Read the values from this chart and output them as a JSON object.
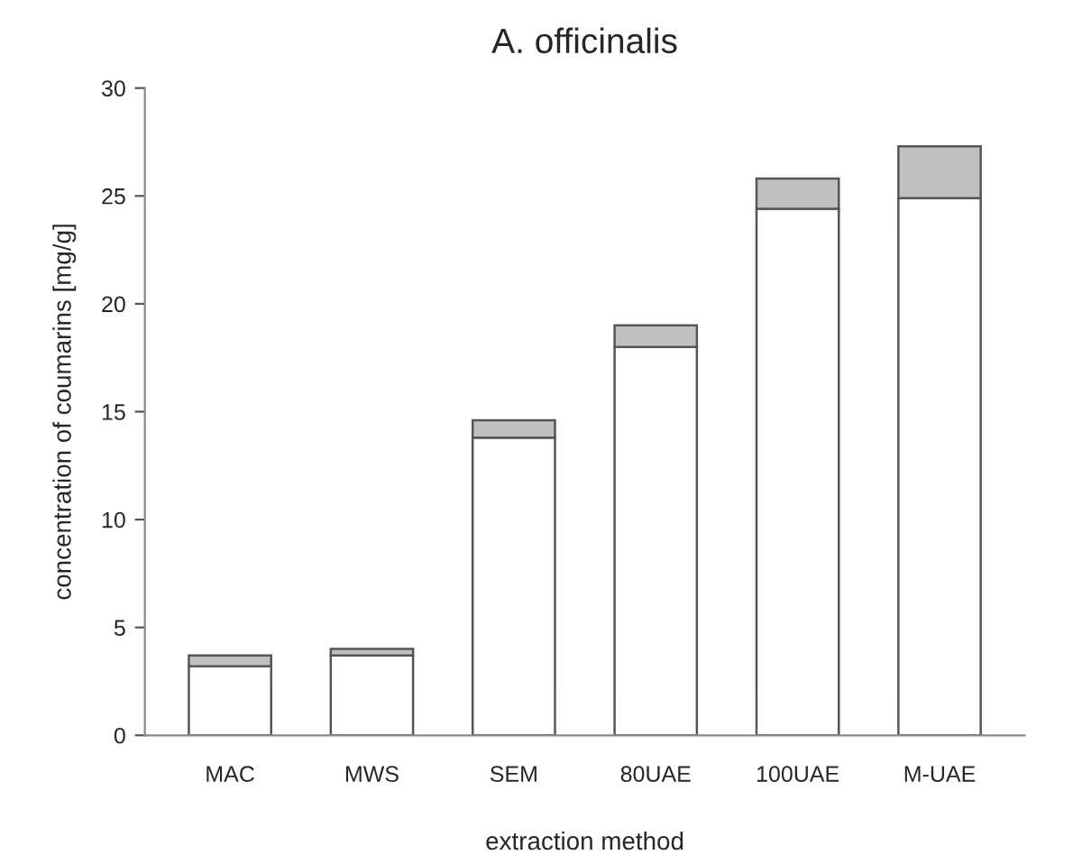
{
  "chart_data": {
    "type": "bar",
    "title": "A. officinalis",
    "xlabel": "extraction method",
    "ylabel": "concentration of coumarins [mg/g]",
    "categories": [
      "MAC",
      "MWS",
      "SEM",
      "80UAE",
      "100UAE",
      "M-UAE"
    ],
    "stacked": true,
    "series": [
      {
        "color": "#ffffff",
        "values": [
          3.2,
          3.7,
          13.8,
          18.0,
          24.4,
          24.9
        ]
      },
      {
        "color": "#c0c0c0",
        "values": [
          0.5,
          0.3,
          0.8,
          1.0,
          1.4,
          2.4
        ]
      }
    ],
    "ylim": [
      0,
      30
    ],
    "yticks": [
      0,
      5,
      10,
      15,
      20,
      25,
      30
    ],
    "grid": false,
    "legend": false
  }
}
